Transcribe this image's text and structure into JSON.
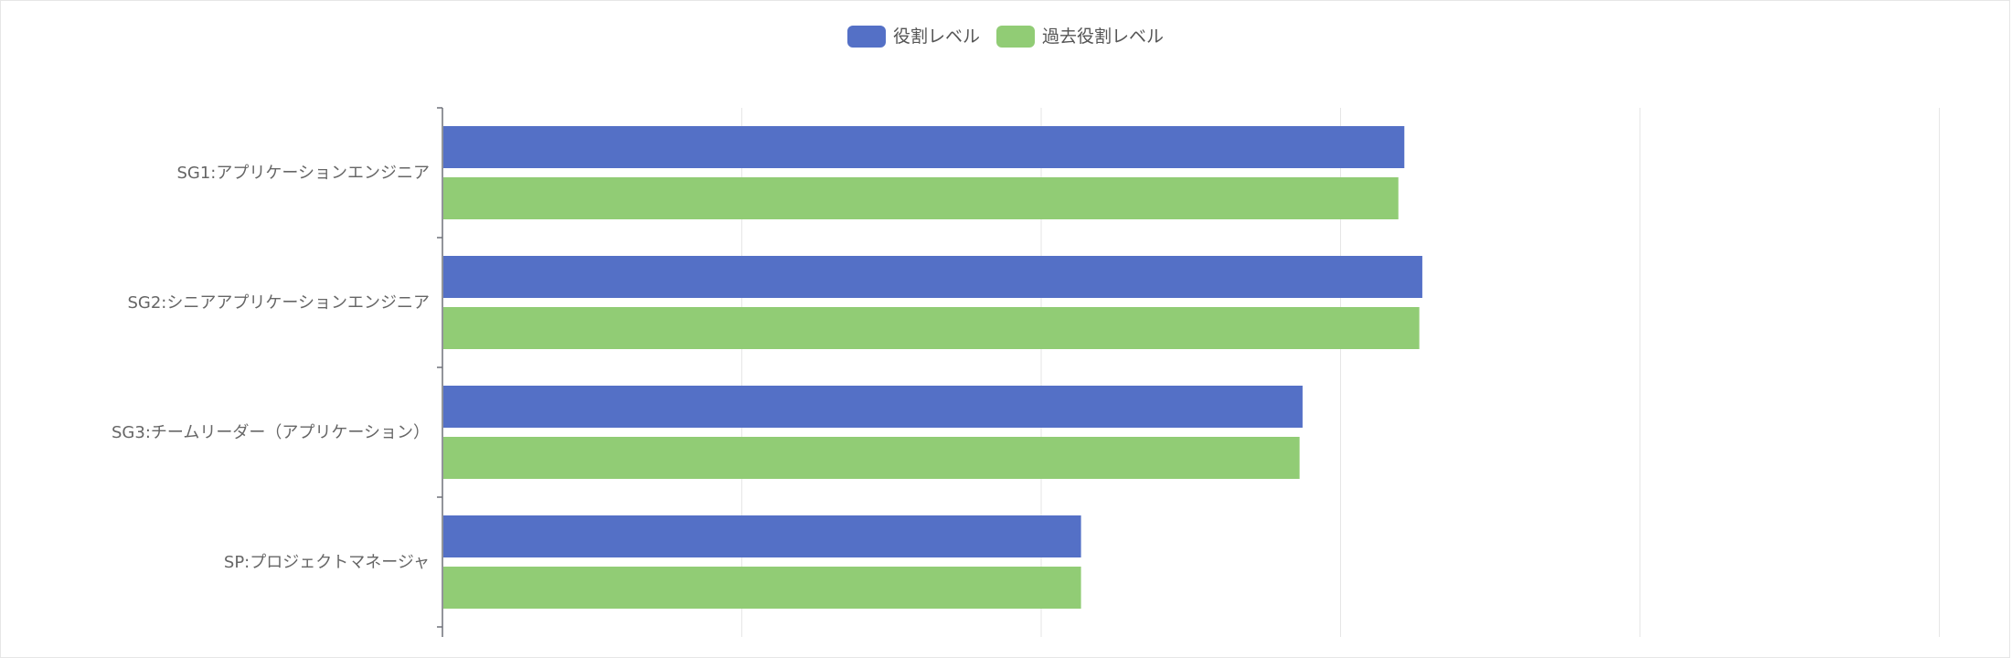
{
  "chart_data": {
    "type": "bar",
    "orientation": "horizontal",
    "categories": [
      "SG1:アプリケーションエンジニア",
      "SG2:シニアアプリケーションエンジニア",
      "SG3:チームリーダー（アプリケーション）",
      "SP:プロジェクトマネージャ"
    ],
    "series": [
      {
        "name": "役割レベル",
        "color": "#5470c6",
        "values": [
          3.21,
          3.27,
          2.87,
          2.13
        ]
      },
      {
        "name": "過去役割レベル",
        "color": "#91cc75",
        "values": [
          3.19,
          3.26,
          2.86,
          2.13
        ]
      }
    ],
    "xlim": [
      0,
      5
    ],
    "grid": true,
    "legend_position": "top-center"
  }
}
